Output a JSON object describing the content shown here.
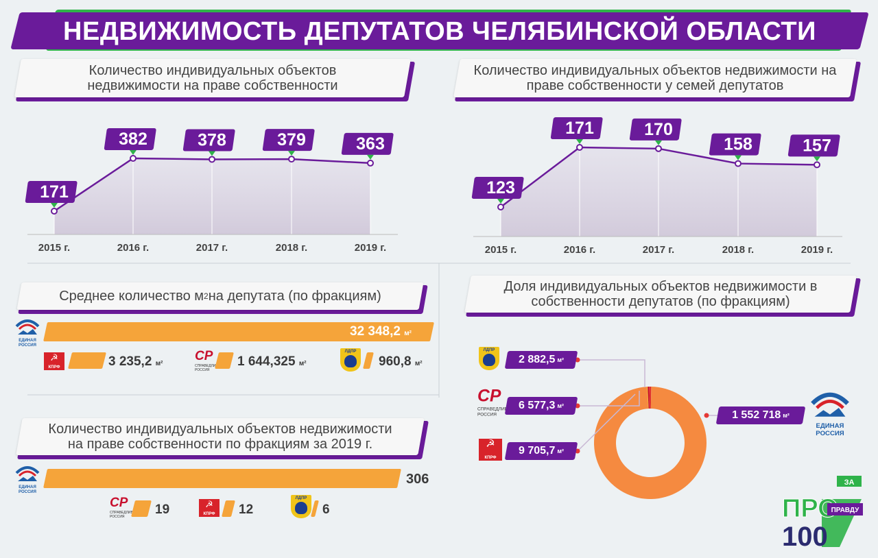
{
  "title": "НЕДВИЖИМОСТЬ ДЕПУТАТОВ ЧЕЛЯБИНСКОЙ ОБЛАСТИ",
  "panels": {
    "top_left_title": "Количество индивидуальных объектов недвижимости на праве собственности",
    "top_right_title": "Количество индивидуальных объектов недвижимости на праве собственности у семей депутатов",
    "mid_left_title": "Среднее количество м",
    "mid_left_title_sup": "2",
    "mid_left_title_tail": " на депутата (по фракциям)",
    "bottom_left_title": "Количество индивидуальных объектов недвижимости на праве собственности по фракциям за 2019 г.",
    "right_donut_title": "Доля индивидуальных объектов недвижимости в собственности депутатов (по фракциям)"
  },
  "parties": {
    "er": "ЕДИНАЯ РОССИЯ",
    "kprf": "КПРФ",
    "sr": "СР",
    "sr_sub": "СПРАВЕДЛИВАЯ РОССИЯ",
    "ldpr": "ЛДПР"
  },
  "unit": "м²",
  "chart_data": [
    {
      "type": "line",
      "title": "Количество индивидуальных объектов недвижимости на праве собственности",
      "categories": [
        "2015 г.",
        "2016 г.",
        "2017 г.",
        "2018 г.",
        "2019 г."
      ],
      "values": [
        171,
        382,
        378,
        379,
        363
      ],
      "color": "#6a1b9a"
    },
    {
      "type": "line",
      "title": "Количество индивидуальных объектов недвижимости на праве собственности у семей депутатов",
      "categories": [
        "2015 г.",
        "2016 г.",
        "2017 г.",
        "2018 г.",
        "2019 г."
      ],
      "values": [
        123,
        171,
        170,
        158,
        157
      ],
      "color": "#6a1b9a"
    },
    {
      "type": "bar",
      "title": "Среднее количество м2 на депутата (по фракциям)",
      "categories": [
        "ЕДИНАЯ РОССИЯ",
        "КПРФ",
        "СР",
        "ЛДПР"
      ],
      "values": [
        32348.2,
        3235.2,
        1644.325,
        960.8
      ],
      "labels": [
        "32 348,2",
        "3 235,2",
        "1 644,325",
        "960,8"
      ],
      "color": "#f5a43a"
    },
    {
      "type": "bar",
      "title": "Количество индивидуальных объектов недвижимости на праве собственности по фракциям за 2019 г.",
      "categories": [
        "ЕДИНАЯ РОССИЯ",
        "СР",
        "КПРФ",
        "ЛДПР"
      ],
      "values": [
        306,
        19,
        12,
        6
      ],
      "labels": [
        "306",
        "19",
        "12",
        "6"
      ],
      "color": "#f5a43a"
    },
    {
      "type": "pie",
      "title": "Доля индивидуальных объектов недвижимости в собственности депутатов (по фракциям)",
      "categories": [
        "ЛДПР",
        "СР",
        "КПРФ",
        "ЕДИНАЯ РОССИЯ"
      ],
      "values": [
        2882.5,
        6577.3,
        9705.7,
        1552718
      ],
      "labels": [
        "2 882,5",
        "6 577,3",
        "9 705,7",
        "1 552 718"
      ],
      "colors": [
        "#f0c419",
        "#c8102e",
        "#e0322f",
        "#f58a40"
      ]
    }
  ],
  "brand": {
    "za": "ЗА",
    "pro": "ПРО",
    "pravdu": "ПРАВДУ",
    "hundred": "100"
  }
}
